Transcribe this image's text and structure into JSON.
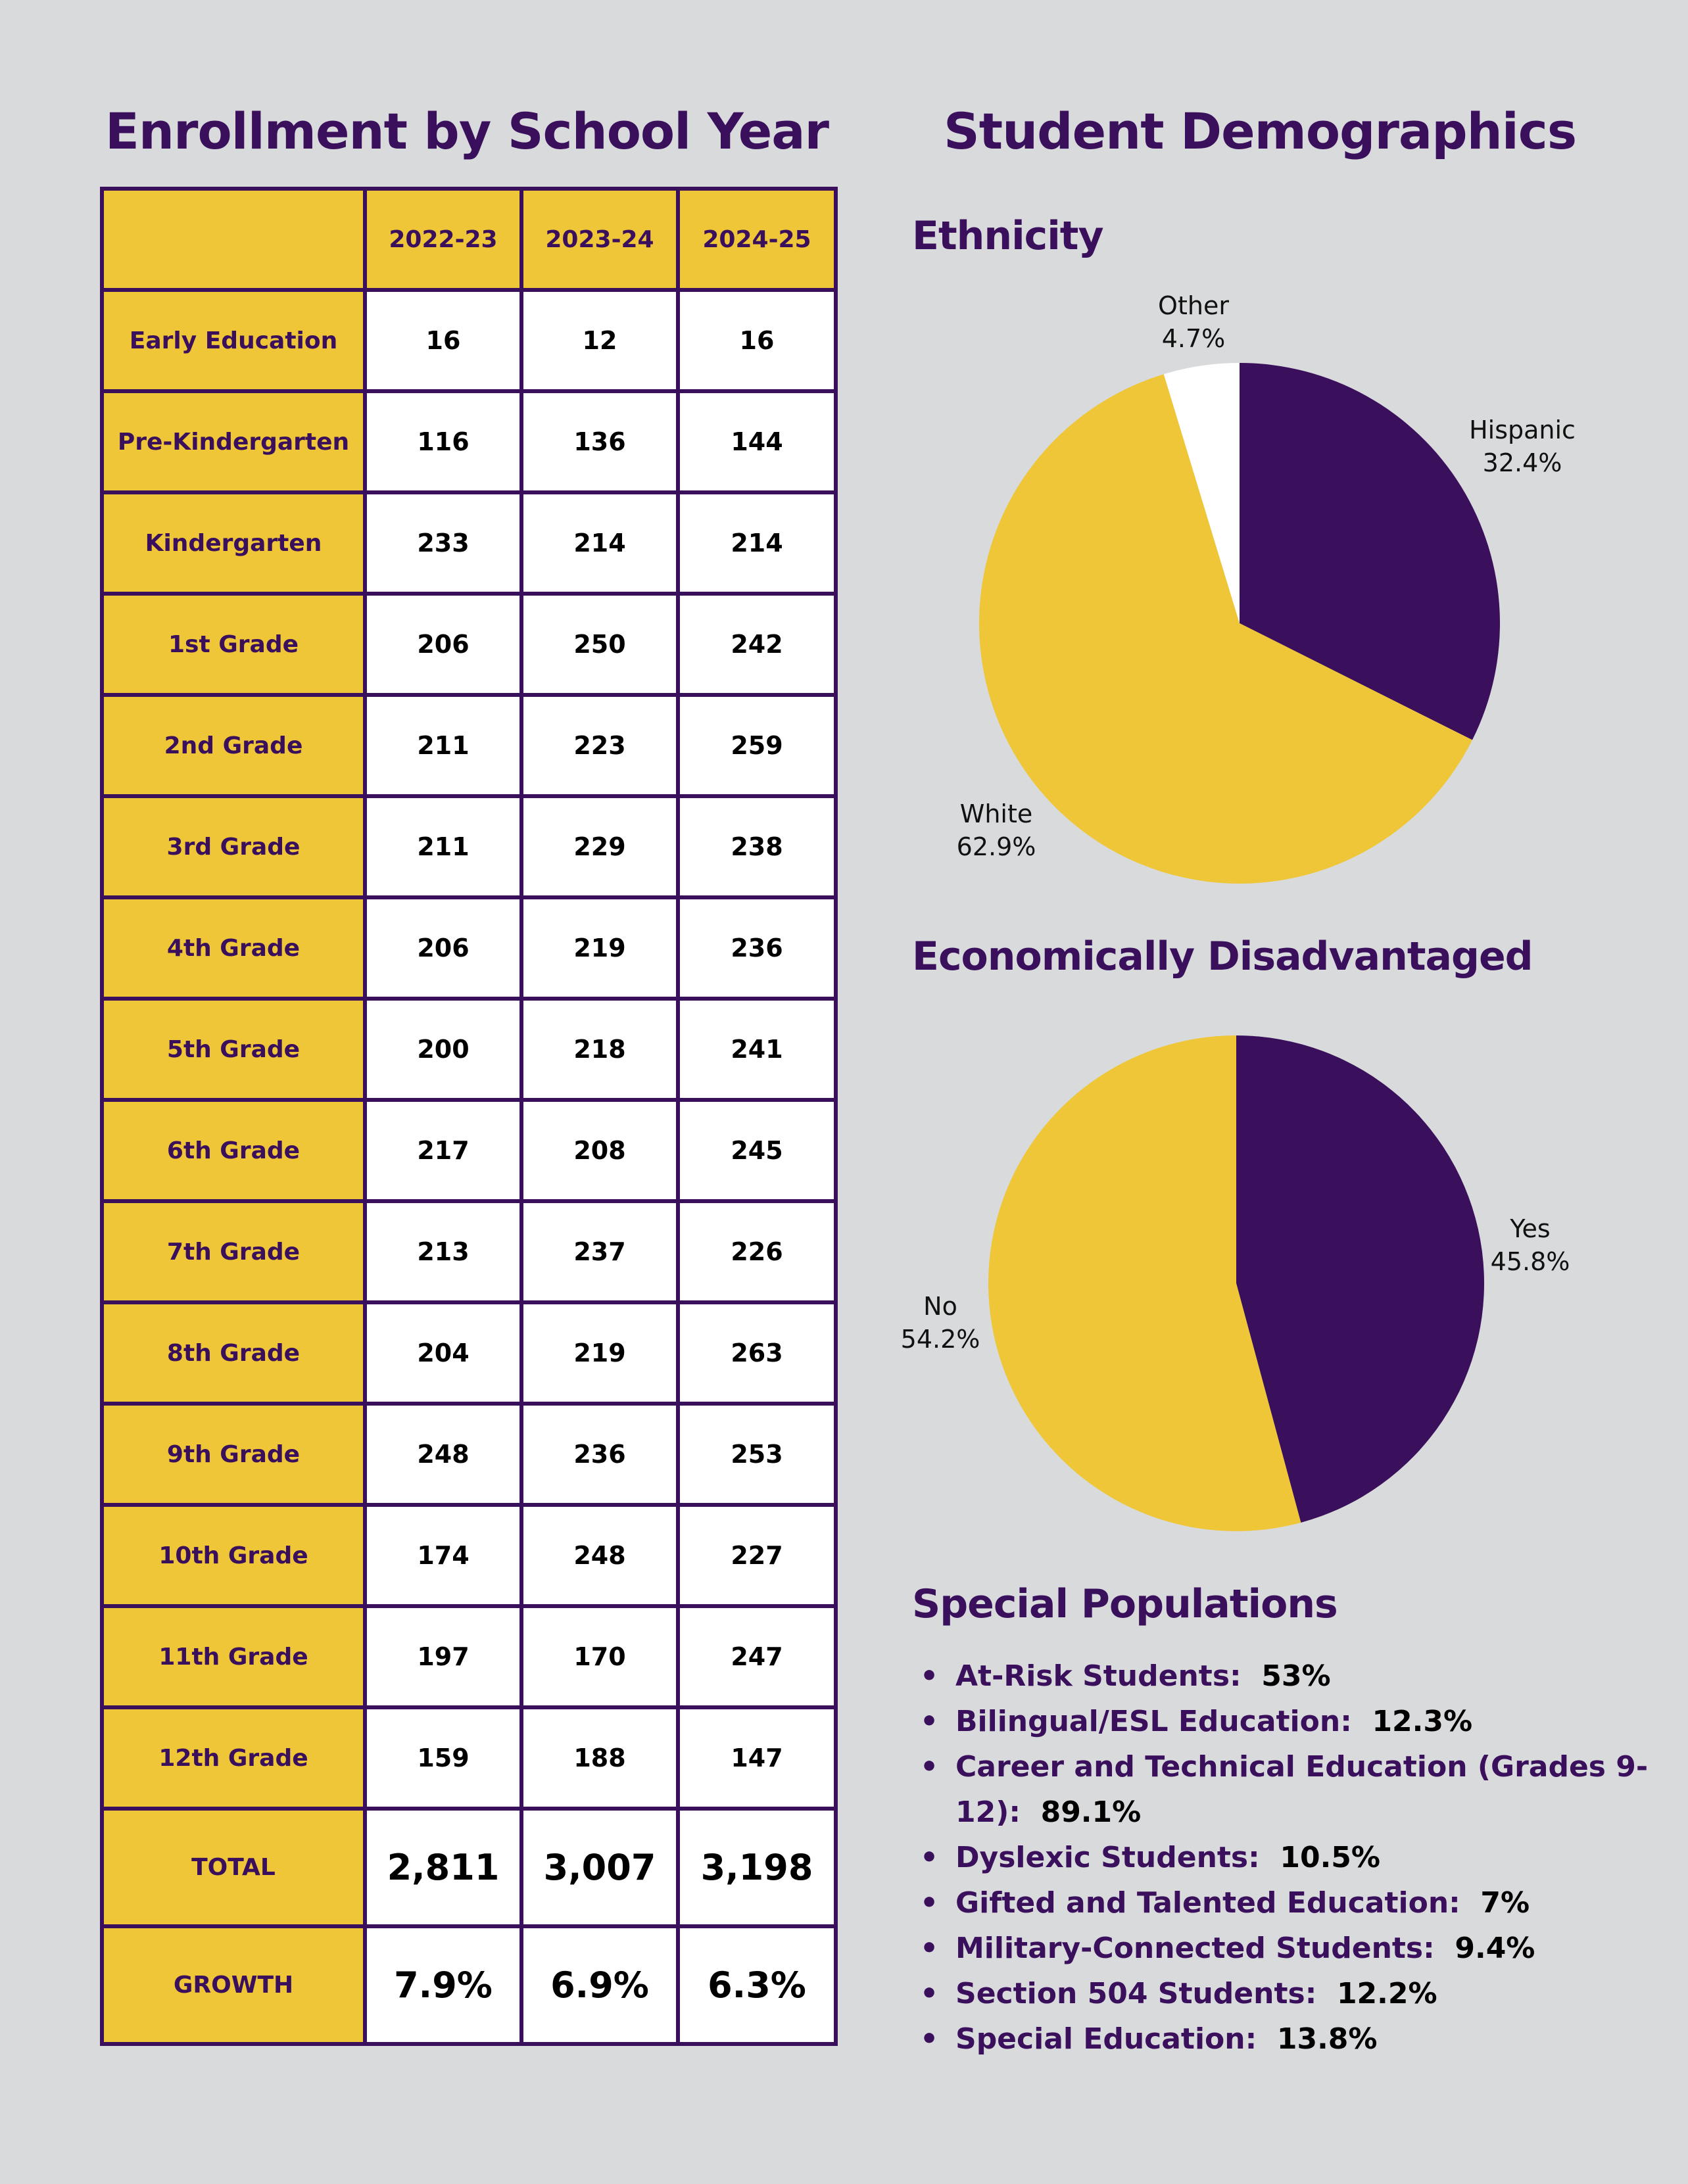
{
  "enrollment": {
    "title": "Enrollment by School Year",
    "corner": "",
    "years": [
      "2022-23",
      "2023-24",
      "2024-25"
    ],
    "rows": [
      {
        "label": "Early Education",
        "values": [
          "16",
          "12",
          "16"
        ]
      },
      {
        "label": "Pre-Kindergarten",
        "values": [
          "116",
          "136",
          "144"
        ]
      },
      {
        "label": "Kindergarten",
        "values": [
          "233",
          "214",
          "214"
        ]
      },
      {
        "label": "1st Grade",
        "values": [
          "206",
          "250",
          "242"
        ]
      },
      {
        "label": "2nd Grade",
        "values": [
          "211",
          "223",
          "259"
        ]
      },
      {
        "label": "3rd Grade",
        "values": [
          "211",
          "229",
          "238"
        ]
      },
      {
        "label": "4th Grade",
        "values": [
          "206",
          "219",
          "236"
        ]
      },
      {
        "label": "5th Grade",
        "values": [
          "200",
          "218",
          "241"
        ]
      },
      {
        "label": "6th Grade",
        "values": [
          "217",
          "208",
          "245"
        ]
      },
      {
        "label": "7th Grade",
        "values": [
          "213",
          "237",
          "226"
        ]
      },
      {
        "label": "8th Grade",
        "values": [
          "204",
          "219",
          "263"
        ]
      },
      {
        "label": "9th Grade",
        "values": [
          "248",
          "236",
          "253"
        ]
      },
      {
        "label": "10th Grade",
        "values": [
          "174",
          "248",
          "227"
        ]
      },
      {
        "label": "11th Grade",
        "values": [
          "197",
          "170",
          "247"
        ]
      },
      {
        "label": "12th Grade",
        "values": [
          "159",
          "188",
          "147"
        ]
      }
    ],
    "total": {
      "label": "TOTAL",
      "values": [
        "2,811",
        "3,007",
        "3,198"
      ]
    },
    "growth": {
      "label": "GROWTH",
      "values": [
        "7.9%",
        "6.9%",
        "6.3%"
      ]
    }
  },
  "demographics": {
    "title": "Student Demographics",
    "special_populations": {
      "title": "Special Populations",
      "items": [
        {
          "name": "At-Risk Students:",
          "value": "53%"
        },
        {
          "name": "Bilingual/ESL Education:",
          "value": "12.3%"
        },
        {
          "name": "Career and Technical Education (Grades 9-12):",
          "value": "89.1%"
        },
        {
          "name": "Dyslexic Students:",
          "value": "10.5%"
        },
        {
          "name": "Gifted and Talented Education:",
          "value": "7%"
        },
        {
          "name": "Military-Connected Students:",
          "value": "9.4%"
        },
        {
          "name": "Section 504 Students:",
          "value": "12.2%"
        },
        {
          "name": "Special Education:",
          "value": "13.8%"
        }
      ]
    }
  },
  "colors": {
    "purple": "#3a0f5c",
    "gold": "#eec637",
    "white": "#ffffff",
    "background": "#d9dadc"
  },
  "chart_data": [
    {
      "type": "table",
      "title": "Enrollment by School Year",
      "columns": [
        "2022-23",
        "2023-24",
        "2024-25"
      ],
      "rows": [
        "Early Education",
        "Pre-Kindergarten",
        "Kindergarten",
        "1st Grade",
        "2nd Grade",
        "3rd Grade",
        "4th Grade",
        "5th Grade",
        "6th Grade",
        "7th Grade",
        "8th Grade",
        "9th Grade",
        "10th Grade",
        "11th Grade",
        "12th Grade",
        "TOTAL",
        "GROWTH"
      ]
    },
    {
      "type": "pie",
      "title": "Ethnicity",
      "slices": [
        {
          "label": "Hispanic",
          "value": 32.4,
          "display": "32.4%",
          "color": "#3a0f5c"
        },
        {
          "label": "White",
          "value": 62.9,
          "display": "62.9%",
          "color": "#eec637"
        },
        {
          "label": "Other",
          "value": 4.7,
          "display": "4.7%",
          "color": "#ffffff"
        }
      ]
    },
    {
      "type": "pie",
      "title": "Economically Disadvantaged",
      "slices": [
        {
          "label": "Yes",
          "value": 45.8,
          "display": "45.8%",
          "color": "#3a0f5c"
        },
        {
          "label": "No",
          "value": 54.2,
          "display": "54.2%",
          "color": "#eec637"
        }
      ]
    }
  ]
}
